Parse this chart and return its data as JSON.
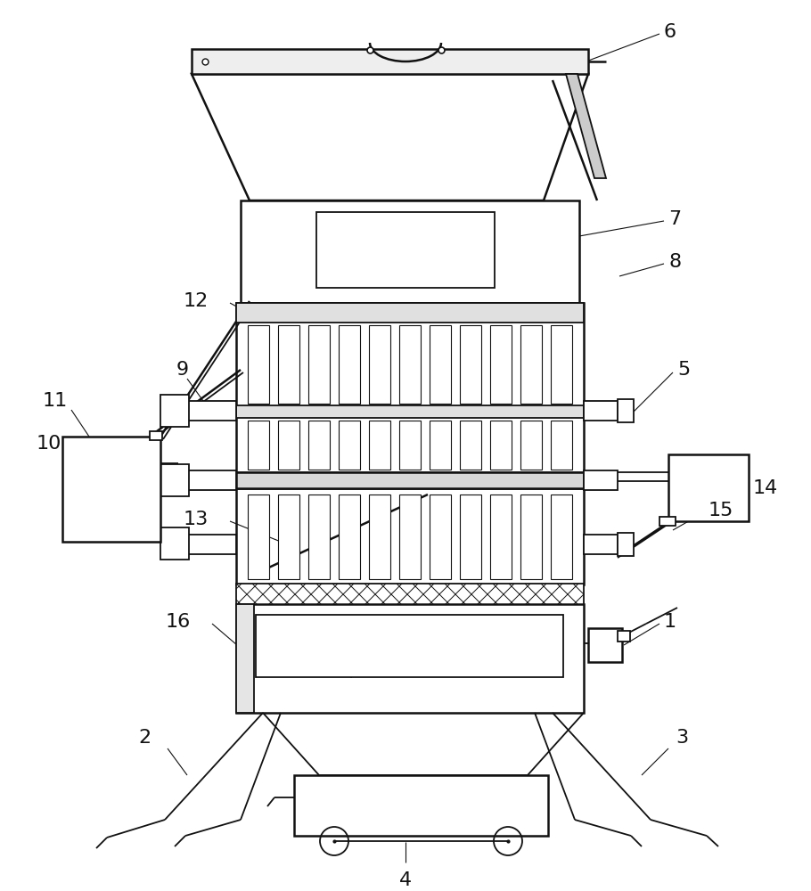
{
  "bg_color": "#ffffff",
  "lc": "#111111",
  "lw": 1.3,
  "lw2": 1.8,
  "lwt": 0.8
}
